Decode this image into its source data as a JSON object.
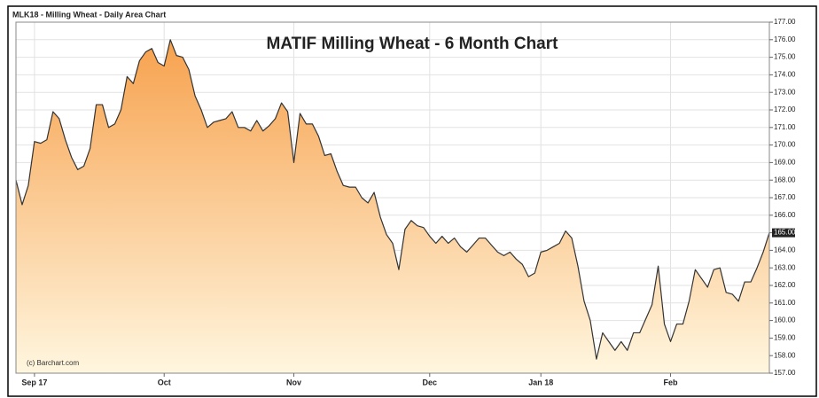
{
  "chart_data": {
    "type": "area",
    "header": "MLK18 - Milling Wheat - Daily Area Chart",
    "title": "MATIF Milling Wheat - 6 Month Chart",
    "credit": "(c) Barchart.com",
    "color": "#333333",
    "fill_top": "#f7a24e",
    "fill_bottom": "#fff6df",
    "grid": true,
    "categories": [
      null,
      null,
      null,
      "Sep 17",
      null,
      null,
      null,
      null,
      null,
      null,
      null,
      null,
      null,
      null,
      null,
      null,
      null,
      null,
      null,
      null,
      null,
      null,
      null,
      null,
      "Oct",
      null,
      null,
      null,
      null,
      null,
      null,
      null,
      null,
      null,
      null,
      null,
      null,
      null,
      null,
      null,
      null,
      null,
      null,
      null,
      null,
      "Nov",
      null,
      null,
      null,
      null,
      null,
      null,
      null,
      null,
      null,
      null,
      null,
      null,
      null,
      null,
      null,
      null,
      null,
      null,
      null,
      null,
      null,
      "Dec",
      null,
      null,
      null,
      null,
      null,
      null,
      null,
      null,
      null,
      null,
      null,
      null,
      null,
      null,
      null,
      null,
      null,
      "Jan 18",
      null,
      null,
      null,
      null,
      null,
      null,
      null,
      null,
      null,
      null,
      null,
      null,
      null,
      null,
      null,
      null,
      null,
      null,
      null,
      null,
      "Feb",
      null,
      null,
      null,
      null,
      null,
      null,
      null,
      null,
      null,
      null,
      null,
      null,
      null,
      null,
      null,
      null
    ],
    "values": [
      168.0,
      166.6,
      167.7,
      170.2,
      170.1,
      170.3,
      171.9,
      171.5,
      170.3,
      169.3,
      168.6,
      168.8,
      169.8,
      172.3,
      172.3,
      171.0,
      171.2,
      172.0,
      173.9,
      173.5,
      174.8,
      175.3,
      175.5,
      174.7,
      174.5,
      176.0,
      175.1,
      175.0,
      174.3,
      172.8,
      172.0,
      171.0,
      171.3,
      171.4,
      171.5,
      171.9,
      171.0,
      171.0,
      170.8,
      171.4,
      170.8,
      171.1,
      171.5,
      172.4,
      171.9,
      169.0,
      171.8,
      171.2,
      171.2,
      170.5,
      169.4,
      169.5,
      168.5,
      167.7,
      167.6,
      167.6,
      167.0,
      166.7,
      167.3,
      165.9,
      164.9,
      164.4,
      162.9,
      165.2,
      165.7,
      165.4,
      165.3,
      164.8,
      164.4,
      164.8,
      164.4,
      164.7,
      164.2,
      163.9,
      164.3,
      164.7,
      164.7,
      164.3,
      163.9,
      163.7,
      163.9,
      163.5,
      163.2,
      162.5,
      162.7,
      163.9,
      164.0,
      164.2,
      164.4,
      165.1,
      164.7,
      163.1,
      161.1,
      160.0,
      157.8,
      159.3,
      158.8,
      158.3,
      158.8,
      158.3,
      159.3,
      159.3,
      160.1,
      160.9,
      163.1,
      159.8,
      158.8,
      159.8,
      159.8,
      161.1,
      162.9,
      162.4,
      161.9,
      162.9,
      163.0,
      161.6,
      161.5,
      161.1,
      162.2,
      162.2,
      163.0,
      163.9,
      165.0
    ],
    "ylim": [
      157,
      177
    ],
    "yticks": [
      {
        "value": 157,
        "label": "157.00"
      },
      {
        "value": 158,
        "label": "158.00"
      },
      {
        "value": 159,
        "label": "159.00"
      },
      {
        "value": 160,
        "label": "160.00"
      },
      {
        "value": 161,
        "label": "161.00"
      },
      {
        "value": 162,
        "label": "162.00"
      },
      {
        "value": 163,
        "label": "163.00"
      },
      {
        "value": 164,
        "label": "164.00"
      },
      {
        "value": 165,
        "label": "165.00"
      },
      {
        "value": 166,
        "label": "166.00"
      },
      {
        "value": 167,
        "label": "167.00"
      },
      {
        "value": 168,
        "label": "168.00"
      },
      {
        "value": 169,
        "label": "169.00"
      },
      {
        "value": 170,
        "label": "170.00"
      },
      {
        "value": 171,
        "label": "171.00"
      },
      {
        "value": 172,
        "label": "172.00"
      },
      {
        "value": 173,
        "label": "173.00"
      },
      {
        "value": 174,
        "label": "174.00"
      },
      {
        "value": 175,
        "label": "175.00"
      },
      {
        "value": 176,
        "label": "176.00"
      },
      {
        "value": 177,
        "label": "177.00"
      }
    ]
  }
}
